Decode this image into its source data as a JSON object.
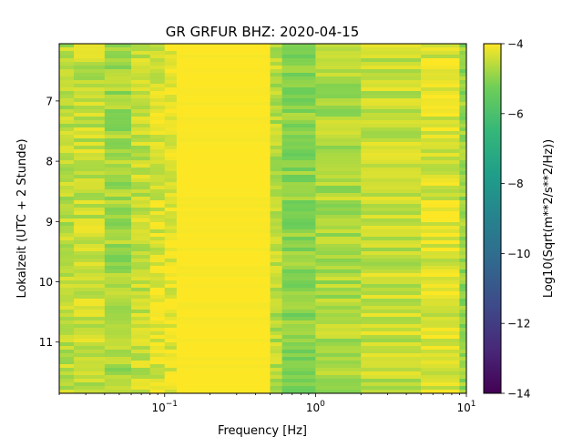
{
  "chart_data": {
    "type": "heatmap",
    "title": "GR GRFUR  BHZ: 2020-04-15",
    "xlabel": "Frequency [Hz]",
    "ylabel": "Lokalzeit (UTC + 2 Stunde)",
    "xscale": "log",
    "xlim": [
      0.02,
      10
    ],
    "ylim": [
      11.85,
      6.05
    ],
    "x_ticks": [
      {
        "value": 0.1,
        "base": "10",
        "exp": "−1"
      },
      {
        "value": 1,
        "base": "10",
        "exp": "0"
      },
      {
        "value": 10,
        "base": "10",
        "exp": "1"
      }
    ],
    "y_ticks": [
      {
        "value": 7,
        "label": "7"
      },
      {
        "value": 8,
        "label": "8"
      },
      {
        "value": 9,
        "label": "9"
      },
      {
        "value": 10,
        "label": "10"
      },
      {
        "value": 11,
        "label": "11"
      }
    ],
    "colorbar": {
      "label": "Log10(Sqrt(m**2/s**2/Hz))",
      "colormap": "viridis",
      "range": [
        -14,
        -4
      ],
      "ticks": [
        {
          "value": -4,
          "label": "−4"
        },
        {
          "value": -6,
          "label": "−6"
        },
        {
          "value": -8,
          "label": "−8"
        },
        {
          "value": -10,
          "label": "−10"
        },
        {
          "value": -12,
          "label": "−12"
        },
        {
          "value": -14,
          "label": "−14"
        }
      ]
    },
    "frequency_bands_hz": [
      {
        "from": 0.02,
        "to": 0.025,
        "level": -4.6
      },
      {
        "from": 0.025,
        "to": 0.04,
        "level": -4.5
      },
      {
        "from": 0.04,
        "to": 0.06,
        "level": -4.8
      },
      {
        "from": 0.06,
        "to": 0.08,
        "level": -4.5
      },
      {
        "from": 0.08,
        "to": 0.1,
        "level": -4.3
      },
      {
        "from": 0.1,
        "to": 0.12,
        "level": -4.2
      },
      {
        "from": 0.12,
        "to": 0.5,
        "level": -4.0
      },
      {
        "from": 0.5,
        "to": 0.6,
        "level": -4.6
      },
      {
        "from": 0.6,
        "to": 1.0,
        "level": -5.0
      },
      {
        "from": 1.0,
        "to": 2.0,
        "level": -4.7
      },
      {
        "from": 2.0,
        "to": 5.0,
        "level": -4.5
      },
      {
        "from": 5.0,
        "to": 9.0,
        "level": -4.3
      },
      {
        "from": 9.0,
        "to": 10.0,
        "level": -4.9
      }
    ]
  }
}
